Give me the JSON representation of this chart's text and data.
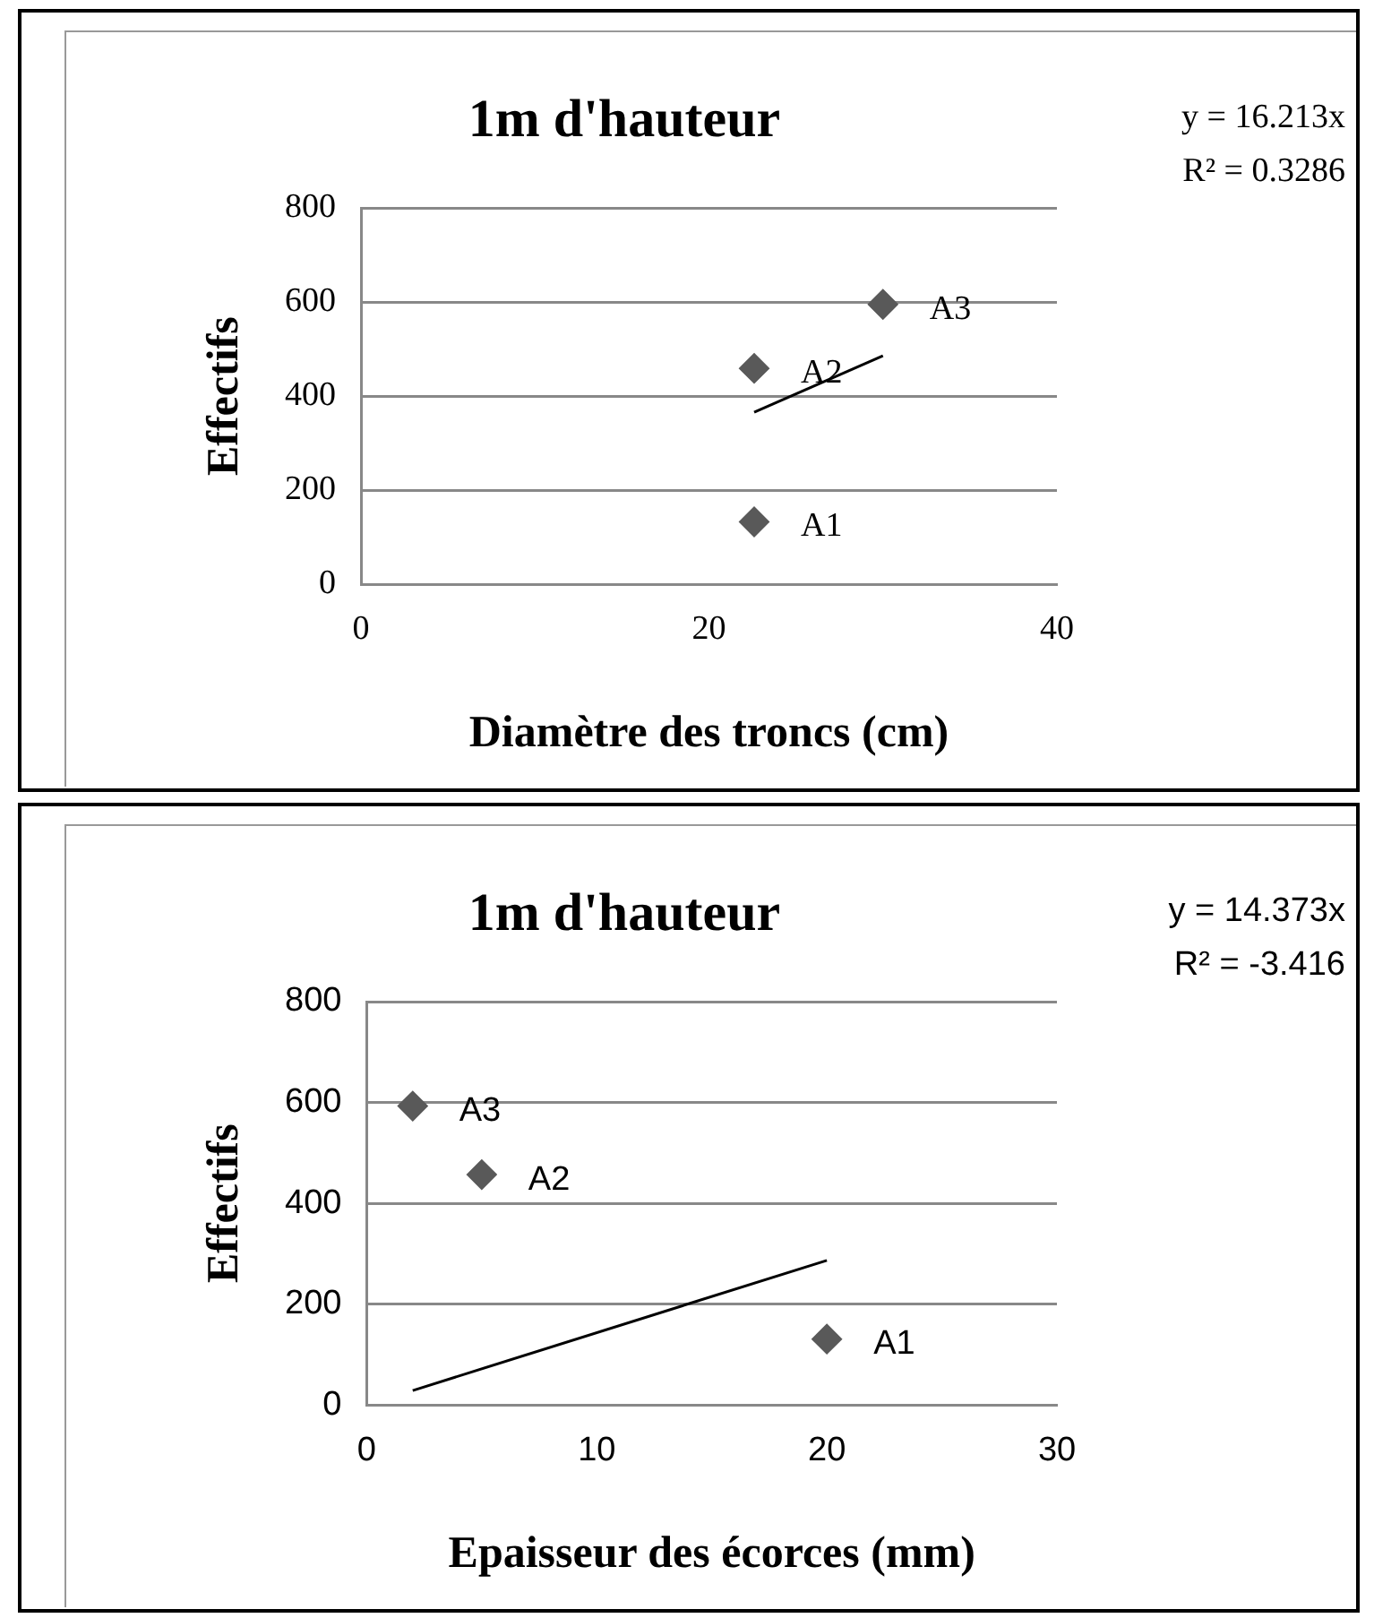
{
  "chart_data": [
    {
      "type": "scatter",
      "title": "1m d'hauteur",
      "xlabel": "Diamètre des troncs (cm)",
      "ylabel": "Effectifs",
      "xlim": [
        0,
        40
      ],
      "xticks": [
        0,
        20,
        40
      ],
      "ylim": [
        0,
        800
      ],
      "yticks": [
        0,
        200,
        400,
        600,
        800
      ],
      "grid": "y",
      "legend": false,
      "marker": "diamond",
      "series": [
        {
          "type": "scatter",
          "color": "#595959",
          "x": [
            22.6,
            22.6,
            30.0
          ],
          "values": [
            133,
            459,
            595
          ]
        },
        {
          "type": "line",
          "color": "#000000",
          "marker": "none",
          "x": [
            22.6,
            30.0
          ],
          "values": [
            366,
            486
          ]
        }
      ],
      "annotations": [
        {
          "text": "A1",
          "x": 22.6,
          "y": 133
        },
        {
          "text": "A2",
          "x": 22.6,
          "y": 459
        },
        {
          "text": "A3",
          "x": 30.0,
          "y": 595
        },
        "y = 16.213x",
        "R² = 0.3286"
      ]
    },
    {
      "type": "scatter",
      "title": "1m d'hauteur",
      "xlabel": "Epaisseur des écorces (mm)",
      "ylabel": "Effectifs",
      "xlim": [
        0,
        30
      ],
      "xticks": [
        0,
        10,
        20,
        30
      ],
      "ylim": [
        0,
        800
      ],
      "yticks": [
        0,
        200,
        400,
        600,
        800
      ],
      "grid": "y",
      "legend": false,
      "marker": "diamond",
      "series": [
        {
          "type": "scatter",
          "color": "#595959",
          "x": [
            20.0,
            5.0,
            2.0
          ],
          "values": [
            131,
            457,
            593
          ]
        },
        {
          "type": "line",
          "color": "#000000",
          "marker": "none",
          "x": [
            2.0,
            20.0
          ],
          "values": [
            29,
            287
          ]
        }
      ],
      "annotations": [
        {
          "text": "A1",
          "x": 20.0,
          "y": 131
        },
        {
          "text": "A2",
          "x": 5.0,
          "y": 457
        },
        {
          "text": "A3",
          "x": 2.0,
          "y": 593
        },
        "y = 14.373x",
        "R² = -3.416"
      ]
    }
  ]
}
